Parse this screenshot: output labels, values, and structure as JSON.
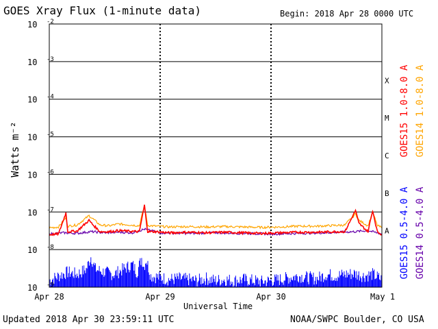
{
  "header": {
    "title": "GOES Xray Flux (1-minute data)",
    "begin": "Begin:  2018 Apr 28 0000 UTC"
  },
  "footer": {
    "updated": "Updated 2018 Apr 30 23:59:11 UTC",
    "credit": "NOAA/SWPC Boulder, CO USA"
  },
  "colors": {
    "goes15_long": "#ff0000",
    "goes14_long": "#ffa500",
    "goes15_short": "#0000ff",
    "goes14_short": "#6600aa",
    "grid": "#000000"
  },
  "chart_data": {
    "type": "line",
    "scale": "log",
    "xlabel": "Universal Time",
    "ylabel": "Watts m⁻²",
    "xlim": [
      0,
      72
    ],
    "x_unit": "hours since 2018 Apr 28 0000 UTC",
    "ylim": [
      1e-09,
      0.01
    ],
    "x_ticks": [
      {
        "label": "Apr 28",
        "hours": 0
      },
      {
        "label": "Apr 29",
        "hours": 24
      },
      {
        "label": "Apr 30",
        "hours": 48
      },
      {
        "label": "May 1",
        "hours": 72
      }
    ],
    "y_ticks": [
      {
        "mant": "10",
        "exp": "-2",
        "value": 0.01
      },
      {
        "mant": "10",
        "exp": "-3",
        "value": 0.001
      },
      {
        "mant": "10",
        "exp": "-4",
        "value": 0.0001
      },
      {
        "mant": "10",
        "exp": "-5",
        "value": 1e-05
      },
      {
        "mant": "10",
        "exp": "-6",
        "value": 1e-06
      },
      {
        "mant": "10",
        "exp": "-7",
        "value": 1e-07
      },
      {
        "mant": "10",
        "exp": "-8",
        "value": 1e-08
      },
      {
        "mant": "10",
        "exp": "-9",
        "value": 1e-09
      }
    ],
    "flare_classes": [
      {
        "label": "X",
        "value": 0.000316
      },
      {
        "label": "M",
        "value": 3.16e-05
      },
      {
        "label": "C",
        "value": 3.16e-06
      },
      {
        "label": "B",
        "value": 3.16e-07
      },
      {
        "label": "A",
        "value": 3.16e-08
      }
    ],
    "series": [
      {
        "name": "GOES15 1.0-8.0 A",
        "color": "#ff0000",
        "x": [
          0,
          2,
          3.6,
          4,
          6,
          8.6,
          9.5,
          11,
          13,
          15,
          17,
          19.5,
          20.6,
          21.3,
          23,
          26,
          30,
          34,
          38,
          42,
          46,
          50,
          54,
          58,
          62,
          64,
          66.3,
          67,
          69,
          70,
          71,
          72
        ],
        "y": [
          2.5e-08,
          2.6e-08,
          9.5e-08,
          3e-08,
          3.1e-08,
          6e-08,
          4.5e-08,
          3e-08,
          3e-08,
          3.2e-08,
          3.1e-08,
          3e-08,
          1.5e-07,
          3e-08,
          3e-08,
          2.8e-08,
          2.9e-08,
          2.8e-08,
          2.9e-08,
          2.8e-08,
          2.7e-08,
          2.8e-08,
          2.9e-08,
          2.9e-08,
          3e-08,
          3e-08,
          1.1e-07,
          5e-08,
          3e-08,
          1.1e-07,
          3e-08,
          2.5e-08
        ]
      },
      {
        "name": "GOES14 1.0-8.0 A",
        "color": "#ffa500",
        "x": [
          0,
          2,
          3.6,
          4,
          6,
          8.6,
          9.5,
          11,
          13,
          15,
          17,
          19.5,
          20.6,
          21.3,
          23,
          26,
          30,
          34,
          38,
          42,
          46,
          50,
          54,
          58,
          62,
          64,
          66.3,
          67,
          69,
          70,
          71,
          72
        ],
        "y": [
          3.8e-08,
          4e-08,
          7e-08,
          4.2e-08,
          4.5e-08,
          8e-08,
          6.5e-08,
          4.5e-08,
          4.3e-08,
          4.8e-08,
          4.6e-08,
          4.3e-08,
          1.5e-07,
          4.4e-08,
          4.2e-08,
          4e-08,
          4.1e-08,
          4e-08,
          4.1e-08,
          4e-08,
          3.9e-08,
          4e-08,
          4.2e-08,
          4.2e-08,
          4.4e-08,
          4.5e-08,
          9e-08,
          6e-08,
          4.3e-08,
          1e-07,
          4.4e-08,
          3.8e-08
        ]
      },
      {
        "name": "GOES15 0.5-4.0 A",
        "color": "#0000ff",
        "x": [
          0,
          2,
          4,
          6,
          8,
          9,
          10,
          12,
          14,
          16,
          18,
          19,
          20,
          20.5,
          21,
          22,
          24,
          26,
          28,
          30,
          32,
          34,
          36,
          38,
          40,
          42,
          44,
          46,
          48,
          50,
          52,
          54,
          56,
          58,
          60,
          62,
          64,
          66,
          68,
          70,
          72
        ],
        "y": [
          1.5e-09,
          2e-09,
          2.5e-09,
          2.2e-09,
          3e-09,
          6.5e-09,
          3e-09,
          2.5e-09,
          2.2e-09,
          3e-09,
          4e-09,
          2.5e-09,
          6e-09,
          3.5e-09,
          5.5e-09,
          2e-09,
          1.8e-09,
          1.6e-09,
          1.7e-09,
          1.6e-09,
          1.5e-09,
          1.7e-09,
          1.5e-09,
          1.6e-09,
          1.5e-09,
          1.6e-09,
          1.5e-09,
          1.4e-09,
          1.5e-09,
          1.6e-09,
          1.8e-09,
          2e-09,
          1.8e-09,
          1.7e-09,
          2.2e-09,
          2e-09,
          2.2e-09,
          2.3e-09,
          2e-09,
          2.2e-09,
          1.6e-09
        ]
      },
      {
        "name": "GOES14 0.5-4.0 A",
        "color": "#6600aa",
        "x": [
          0,
          3,
          6,
          9,
          12,
          15,
          18,
          20.6,
          24,
          30,
          36,
          42,
          48,
          54,
          60,
          66,
          69,
          72
        ],
        "y": [
          2.6e-08,
          2.8e-08,
          2.7e-08,
          3e-08,
          2.8e-08,
          2.9e-08,
          2.8e-08,
          3.5e-08,
          2.8e-08,
          2.7e-08,
          2.8e-08,
          2.7e-08,
          2.6e-08,
          2.7e-08,
          2.8e-08,
          3e-08,
          3.2e-08,
          2.6e-08
        ]
      }
    ]
  }
}
